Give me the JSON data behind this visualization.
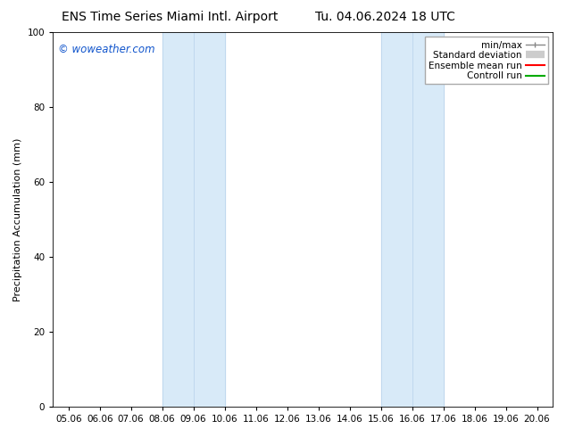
{
  "title_left": "ENS Time Series Miami Intl. Airport",
  "title_right": "Tu. 04.06.2024 18 UTC",
  "ylabel": "Precipitation Accumulation (mm)",
  "ylim": [
    0,
    100
  ],
  "yticks": [
    0,
    20,
    40,
    60,
    80,
    100
  ],
  "xtick_labels": [
    "05.06",
    "06.06",
    "07.06",
    "08.06",
    "09.06",
    "10.06",
    "11.06",
    "12.06",
    "13.06",
    "14.06",
    "15.06",
    "16.06",
    "17.06",
    "18.06",
    "19.06",
    "20.06"
  ],
  "shaded_bands": [
    {
      "xmin": 3,
      "xmax": 5,
      "color": "#d8eaf8"
    },
    {
      "xmin": 10,
      "xmax": 12,
      "color": "#d8eaf8"
    }
  ],
  "band_vlines": [
    3,
    4,
    5,
    10,
    11,
    12
  ],
  "band_vline_color": "#c0d8ee",
  "legend_items": [
    {
      "label": "min/max",
      "color": "#888888",
      "lw": 1.0
    },
    {
      "label": "Standard deviation",
      "color": "#cccccc",
      "lw": 6
    },
    {
      "label": "Ensemble mean run",
      "color": "#ff0000",
      "lw": 1.5
    },
    {
      "label": "Controll run",
      "color": "#00aa00",
      "lw": 1.5
    }
  ],
  "watermark": "© woweather.com",
  "watermark_color": "#1155cc",
  "background_color": "#ffffff",
  "plot_bg_color": "#ffffff",
  "title_fontsize": 10,
  "ylabel_fontsize": 8,
  "tick_fontsize": 7.5,
  "legend_fontsize": 7.5,
  "watermark_fontsize": 8.5
}
